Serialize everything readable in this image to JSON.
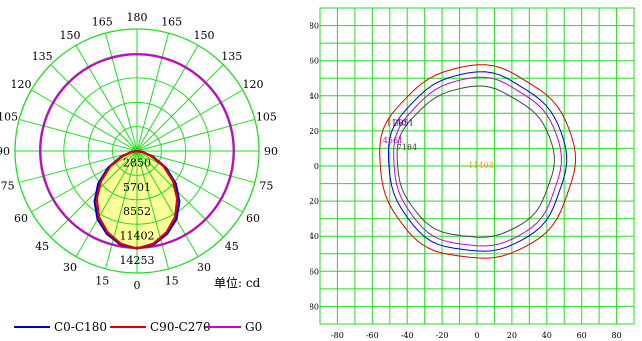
{
  "chart_data": [
    {
      "type": "polar",
      "angle_labels_left": [
        "0",
        "15",
        "30",
        "45",
        "60",
        "75",
        "90",
        "105",
        "120",
        "135",
        "150",
        "165",
        "180"
      ],
      "angle_labels_right": [
        "15",
        "30",
        "45",
        "60",
        "75",
        "90",
        "105",
        "120",
        "135",
        "150",
        "165"
      ],
      "radial_labels": [
        "2850",
        "5701",
        "8552",
        "11402",
        "14253"
      ],
      "rmax": 14253,
      "units_label": "单位: cd",
      "series": [
        {
          "name": "C0-C180",
          "color": "#0000cc",
          "points": [
            [
              0,
              11402
            ],
            [
              10,
              11100
            ],
            [
              20,
              10300
            ],
            [
              30,
              9200
            ],
            [
              40,
              7700
            ],
            [
              50,
              5900
            ],
            [
              60,
              3900
            ],
            [
              70,
              2000
            ],
            [
              80,
              700
            ],
            [
              90,
              0
            ]
          ]
        },
        {
          "name": "C90-C270",
          "color": "#dd0000",
          "points": [
            [
              0,
              11402
            ],
            [
              10,
              11000
            ],
            [
              20,
              10100
            ],
            [
              30,
              8900
            ],
            [
              40,
              7300
            ],
            [
              50,
              5500
            ],
            [
              60,
              3600
            ],
            [
              70,
              1800
            ],
            [
              80,
              600
            ],
            [
              90,
              0
            ]
          ]
        },
        {
          "name": "G0",
          "color": "#cc00cc",
          "constant_value": 11300
        }
      ]
    },
    {
      "type": "contour",
      "xlim": [
        -90,
        90
      ],
      "ylim": [
        -90,
        90
      ],
      "x_ticks": [
        "-80",
        "-60",
        "-40",
        "-20",
        "0",
        "20",
        "40",
        "60",
        "80"
      ],
      "y_ticks": [
        "80",
        "60",
        "40",
        "20",
        "0",
        "-20",
        "-40",
        "-60",
        "-80"
      ],
      "center_label": "11403",
      "contours": [
        {
          "label": "1140",
          "color": "#dd0000",
          "rx": 56,
          "ry": 55,
          "cx": 0,
          "cy": 2
        },
        {
          "label": "2851",
          "color": "#0000cc",
          "rx": 51,
          "ry": 51,
          "cx": 0,
          "cy": 2
        },
        {
          "label": "4561",
          "color": "#cc00cc",
          "rx": 48,
          "ry": 48,
          "cx": 0,
          "cy": 2
        },
        {
          "label": "7184",
          "color": "#444444",
          "rx": 45,
          "ry": 43,
          "cx": -1,
          "cy": 2
        }
      ]
    }
  ],
  "legend": [
    {
      "label": "C0-C180",
      "color": "#0000cc"
    },
    {
      "label": "C90-C270",
      "color": "#dd0000"
    },
    {
      "label": "G0",
      "color": "#cc00cc"
    }
  ]
}
